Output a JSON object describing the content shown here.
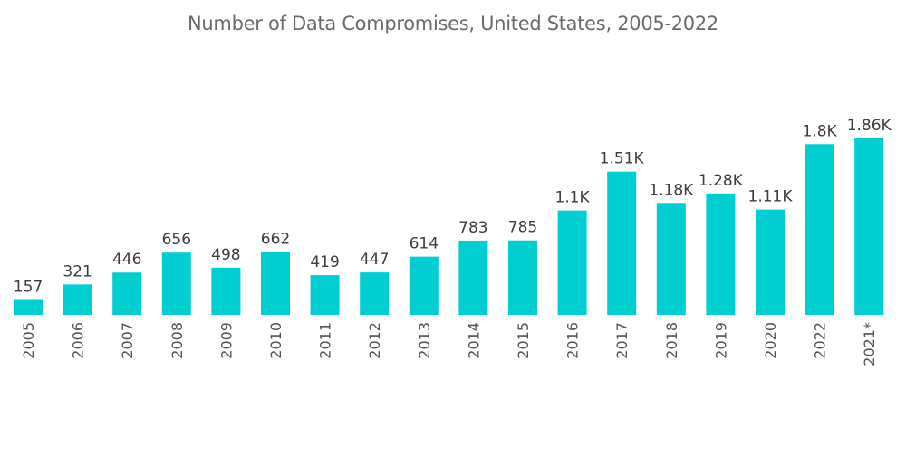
{
  "chart_data": {
    "type": "bar",
    "title": "Number of Data Compromises, United States, 2005-2022",
    "xlabel": "",
    "ylabel": "",
    "grid": false,
    "legend": "none",
    "color": "#00ced1",
    "categories": [
      "2005",
      "2006",
      "2007",
      "2008",
      "2009",
      "2010",
      "2011",
      "2012",
      "2013",
      "2014",
      "2015",
      "2016",
      "2017",
      "2018",
      "2019",
      "2020",
      "2022",
      "2021*"
    ],
    "values": [
      157,
      321,
      446,
      656,
      498,
      662,
      419,
      447,
      614,
      783,
      785,
      1100,
      1510,
      1180,
      1280,
      1110,
      1800,
      1860
    ],
    "data_labels": [
      "157",
      "321",
      "446",
      "656",
      "498",
      "662",
      "419",
      "447",
      "614",
      "783",
      "785",
      "1.1K",
      "1.51K",
      "1.18K",
      "1.28K",
      "1.11K",
      "1.8K",
      "1.86K"
    ],
    "ylim": [
      0,
      1860
    ]
  }
}
